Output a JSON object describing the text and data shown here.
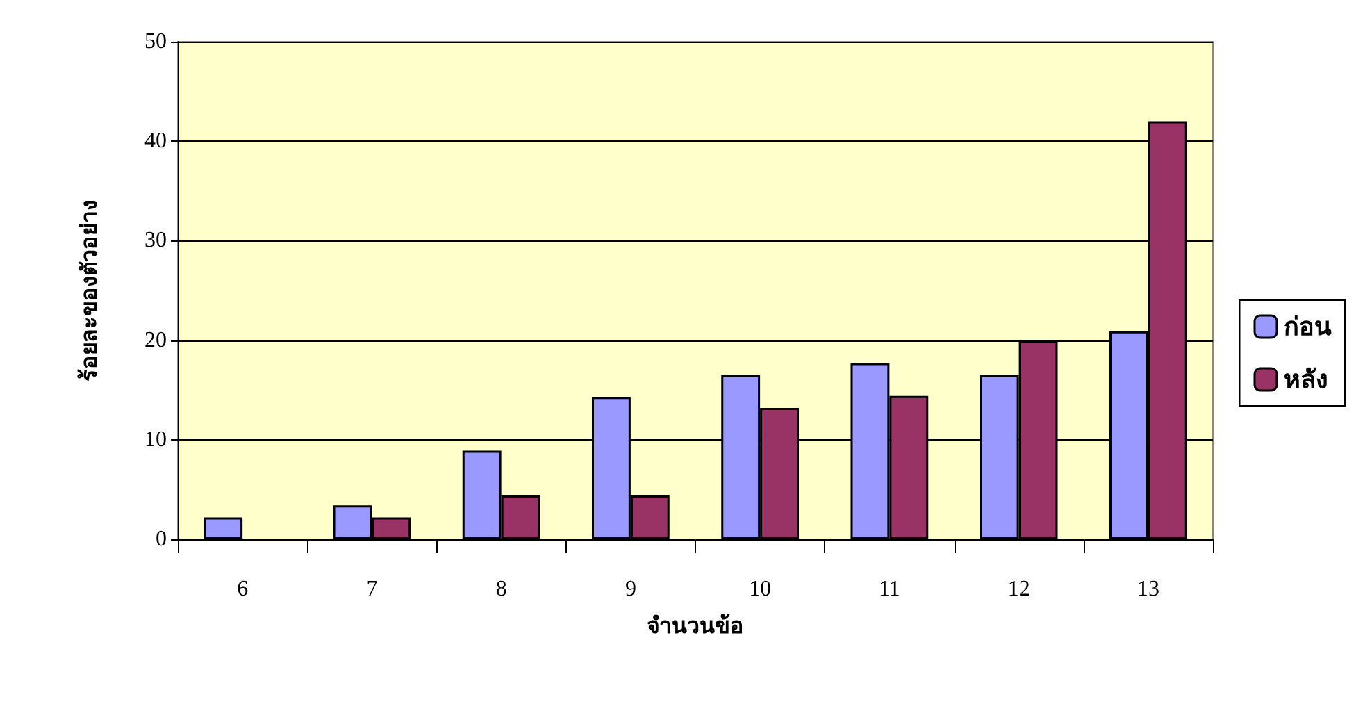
{
  "chart_data": {
    "type": "bar",
    "xlabel": "จำนวนข้อ",
    "ylabel": "ร้อยละของตัวอย่าง",
    "categories": [
      "6",
      "7",
      "8",
      "9",
      "10",
      "11",
      "12",
      "13"
    ],
    "series": [
      {
        "name": "ก่อน",
        "color": "#9999ff",
        "values": [
          2.2,
          3.4,
          8.9,
          14.3,
          16.5,
          17.7,
          16.5,
          20.9
        ]
      },
      {
        "name": "หลัง",
        "color": "#993366",
        "values": [
          null,
          2.2,
          4.4,
          4.4,
          13.2,
          14.4,
          19.9,
          42.0
        ]
      }
    ],
    "ylim": [
      0,
      50
    ],
    "yticks": [
      0,
      10,
      20,
      30,
      40,
      50
    ],
    "grid": "y",
    "legend": "right"
  }
}
